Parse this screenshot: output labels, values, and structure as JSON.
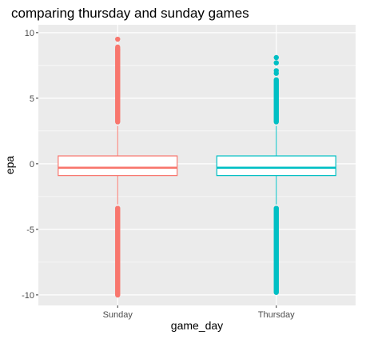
{
  "chart_data": {
    "type": "box",
    "title": "comparing thursday and sunday games",
    "xlabel": "game_day",
    "ylabel": "epa",
    "categories": [
      "Sunday",
      "Thursday"
    ],
    "ylim": [
      -10.8,
      10.6
    ],
    "yticks": [
      -10,
      -5,
      0,
      5,
      10
    ],
    "grid": true,
    "legend": "none",
    "series": [
      {
        "category": "Sunday",
        "color": "#F8766D",
        "min": -3.1,
        "q1": -0.9,
        "median": -0.3,
        "q3": 0.6,
        "max": 2.9,
        "outlier_low": [
          -10.2,
          -3.2
        ],
        "outlier_high": [
          3.0,
          9.0
        ],
        "outlier_points": [
          9.5,
          8.9,
          8.7
        ]
      },
      {
        "category": "Thursday",
        "color": "#00BFC4",
        "min": -3.1,
        "q1": -0.9,
        "median": -0.3,
        "q3": 0.6,
        "max": 2.9,
        "outlier_low": [
          -10.0,
          -3.2
        ],
        "outlier_high": [
          3.0,
          6.6
        ],
        "outlier_points": [
          8.1,
          7.7,
          7.1,
          6.9
        ]
      }
    ]
  }
}
